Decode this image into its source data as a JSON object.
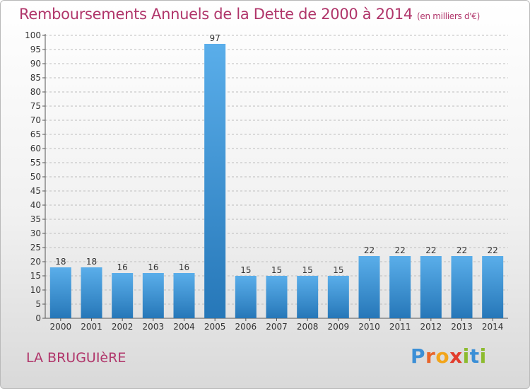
{
  "header": {
    "title": "Remboursements Annuels de la Dette de 2000 à 2014",
    "unit": "(en milliers d'€)"
  },
  "footer": {
    "commune": "LA BRUGUIèRE",
    "logo": [
      "P",
      "r",
      "o",
      "x",
      "i",
      "t",
      "i"
    ]
  },
  "colors": {
    "bar": "#3d98dc",
    "bar_dark": "#2a7bbd",
    "title": "#b0356a",
    "grid": "#bdbdbd"
  },
  "chart_data": {
    "type": "bar",
    "title": "Remboursements Annuels de la Dette de 2000 à 2014",
    "categories": [
      "2000",
      "2001",
      "2002",
      "2003",
      "2004",
      "2005",
      "2006",
      "2007",
      "2008",
      "2009",
      "2010",
      "2011",
      "2012",
      "2013",
      "2014"
    ],
    "values": [
      18,
      18,
      16,
      16,
      16,
      97,
      15,
      15,
      15,
      15,
      22,
      22,
      22,
      22,
      22
    ],
    "ylim": [
      0,
      100
    ],
    "yticks": [
      0,
      5,
      10,
      15,
      20,
      25,
      30,
      35,
      40,
      45,
      50,
      55,
      60,
      65,
      70,
      75,
      80,
      85,
      90,
      95,
      100
    ],
    "grid": true,
    "xlabel": "",
    "ylabel": ""
  }
}
